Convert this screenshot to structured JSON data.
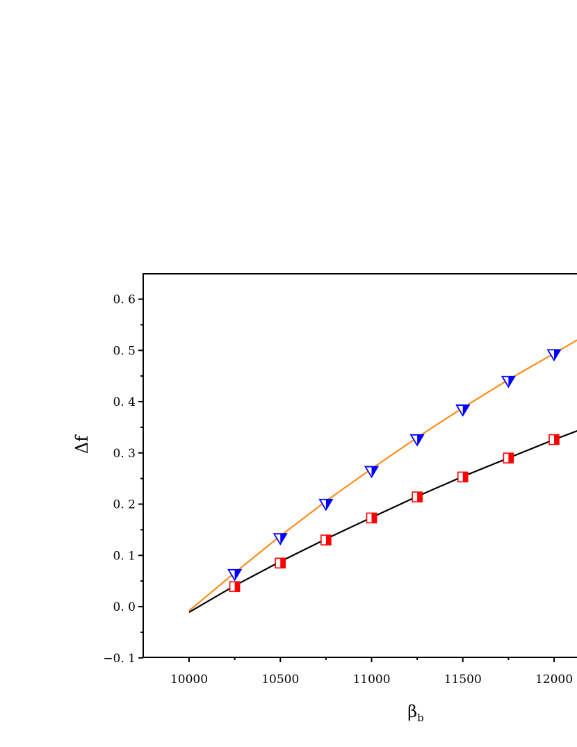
{
  "chart_data": {
    "type": "line",
    "title": "",
    "xlabel": "β",
    "xlabel_subscript": "b",
    "ylabel": "Δf",
    "xlim": [
      9750,
      12150
    ],
    "ylim": [
      -0.1,
      0.65
    ],
    "x_ticks": [
      10000,
      10500,
      11000,
      11500,
      12000
    ],
    "x_tick_labels": [
      "10000",
      "10500",
      "11000",
      "11500",
      "12000"
    ],
    "y_ticks": [
      -0.1,
      0.0,
      0.1,
      0.2,
      0.3,
      0.4,
      0.5,
      0.6
    ],
    "y_tick_labels": [
      "−0. 1",
      "0. 0",
      "0. 1",
      "0. 2",
      "0. 3",
      "0. 4",
      "0. 5",
      "0. 6"
    ],
    "grid": false,
    "legend": "none",
    "series": [
      {
        "color": "#ff8c1a",
        "marker": "half-filled-triangle-down",
        "marker_color": "#0000ff",
        "line": {
          "x": [
            10000,
            10250,
            10500,
            10750,
            11000,
            11250,
            11500,
            11750,
            12000,
            12150
          ],
          "y": [
            -0.008,
            0.066,
            0.138,
            0.206,
            0.269,
            0.33,
            0.388,
            0.443,
            0.494,
            0.525
          ]
        },
        "points": {
          "x": [
            10250,
            10500,
            10750,
            11000,
            11250,
            11500,
            11750,
            12000
          ],
          "y": [
            0.063,
            0.133,
            0.2,
            0.264,
            0.326,
            0.384,
            0.44,
            0.492
          ]
        }
      },
      {
        "color": "#000000",
        "marker": "half-filled-square",
        "marker_color": "#ff0000",
        "line": {
          "x": [
            10000,
            10250,
            10500,
            10750,
            11000,
            11250,
            11500,
            11750,
            12000,
            12150
          ],
          "y": [
            -0.011,
            0.041,
            0.088,
            0.132,
            0.174,
            0.215,
            0.254,
            0.29,
            0.326,
            0.346
          ]
        },
        "points": {
          "x": [
            10250,
            10500,
            10750,
            11000,
            11250,
            11500,
            11750,
            12000
          ],
          "y": [
            0.039,
            0.085,
            0.13,
            0.173,
            0.214,
            0.253,
            0.29,
            0.326
          ]
        }
      }
    ]
  }
}
